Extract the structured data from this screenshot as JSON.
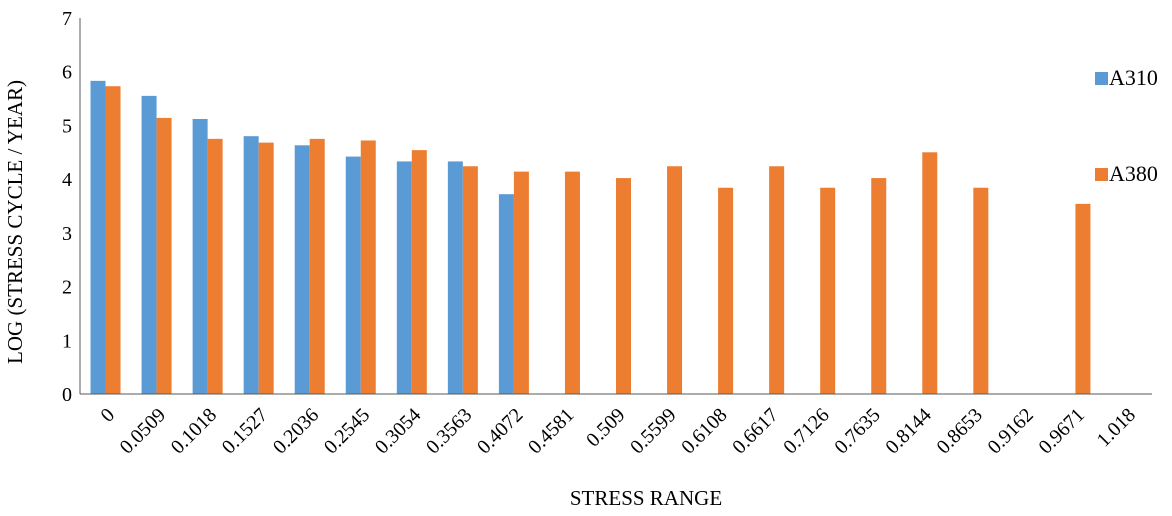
{
  "chart_data": {
    "type": "bar",
    "title": "",
    "xlabel": "STRESS RANGE",
    "ylabel": "LOG (STRESS CYCLE / YEAR)",
    "ylim": [
      0,
      7
    ],
    "yticks": [
      "0",
      "1",
      "2",
      "3",
      "4",
      "5",
      "6",
      "7"
    ],
    "grid": false,
    "legend_position": "right",
    "categories": [
      "0",
      "0.0509",
      "0.1018",
      "0.1527",
      "0.2036",
      "0.2545",
      "0.3054",
      "0.3563",
      "0.4072",
      "0.4581",
      "0.509",
      "0.5599",
      "0.6108",
      "0.6617",
      "0.7126",
      "0.7635",
      "0.8144",
      "0.8653",
      "0.9162",
      "0.9671",
      "1.018"
    ],
    "series": [
      {
        "name": "A310",
        "color": "#5B9BD5",
        "values": [
          5.83,
          5.55,
          5.12,
          4.8,
          4.63,
          4.42,
          4.33,
          4.33,
          3.72,
          null,
          null,
          null,
          null,
          null,
          null,
          null,
          null,
          null,
          null,
          null,
          null
        ]
      },
      {
        "name": "A380",
        "color": "#ED7D31",
        "values": [
          5.73,
          5.14,
          4.75,
          4.68,
          4.75,
          4.72,
          4.54,
          4.24,
          4.14,
          4.14,
          4.02,
          4.24,
          3.84,
          4.24,
          3.84,
          4.02,
          4.5,
          3.84,
          null,
          3.54,
          null
        ]
      }
    ]
  }
}
